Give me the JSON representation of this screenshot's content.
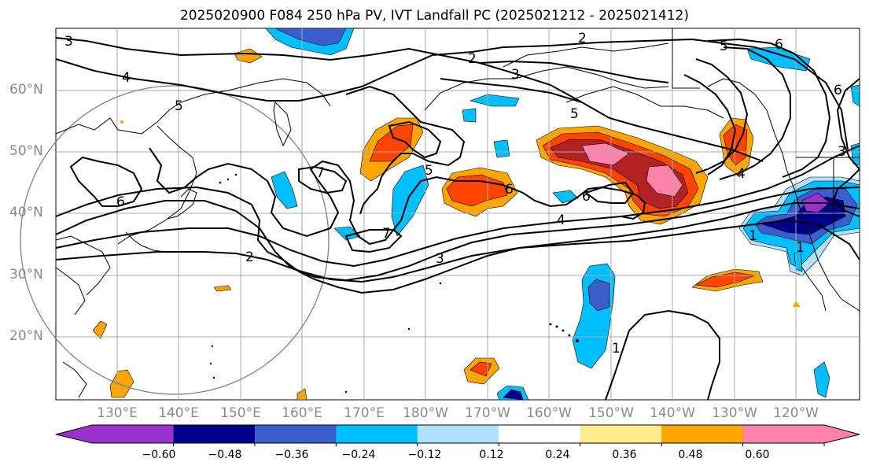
{
  "title": "2025020900 F084 250 hPa PV, IVT Landfall PC (2025021212 - 2025021412)",
  "lat_labels": [
    "60°N",
    "50°N",
    "40°N",
    "30°N",
    "20°N"
  ],
  "lon_labels": [
    "130°E",
    "140°E",
    "150°E",
    "160°E",
    "170°E",
    "180°W",
    "170°W",
    "160°W",
    "150°W",
    "140°W",
    "130°W",
    "120°W"
  ],
  "contour_labels": [
    "3",
    "2",
    "4",
    "5",
    "3",
    "2",
    "6",
    "6",
    "5",
    "3",
    "5",
    "4",
    "1",
    "6",
    "5",
    "7",
    "6",
    "6",
    "4",
    "7",
    "3",
    "2",
    "1",
    "1"
  ],
  "colorbar": {
    "ticks": [
      "−0.60",
      "−0.48",
      "−0.36",
      "−0.24",
      "−0.12",
      "0.12",
      "0.24",
      "0.36",
      "0.48",
      "0.60"
    ],
    "colors": [
      "#9932cc",
      "#00008b",
      "#3a5fcd",
      "#00bfff",
      "#b0e2ff",
      "#ffffff",
      "#ffec8b",
      "#ffa500",
      "#ff4500",
      "#b22222",
      "#ff82ab"
    ]
  }
}
